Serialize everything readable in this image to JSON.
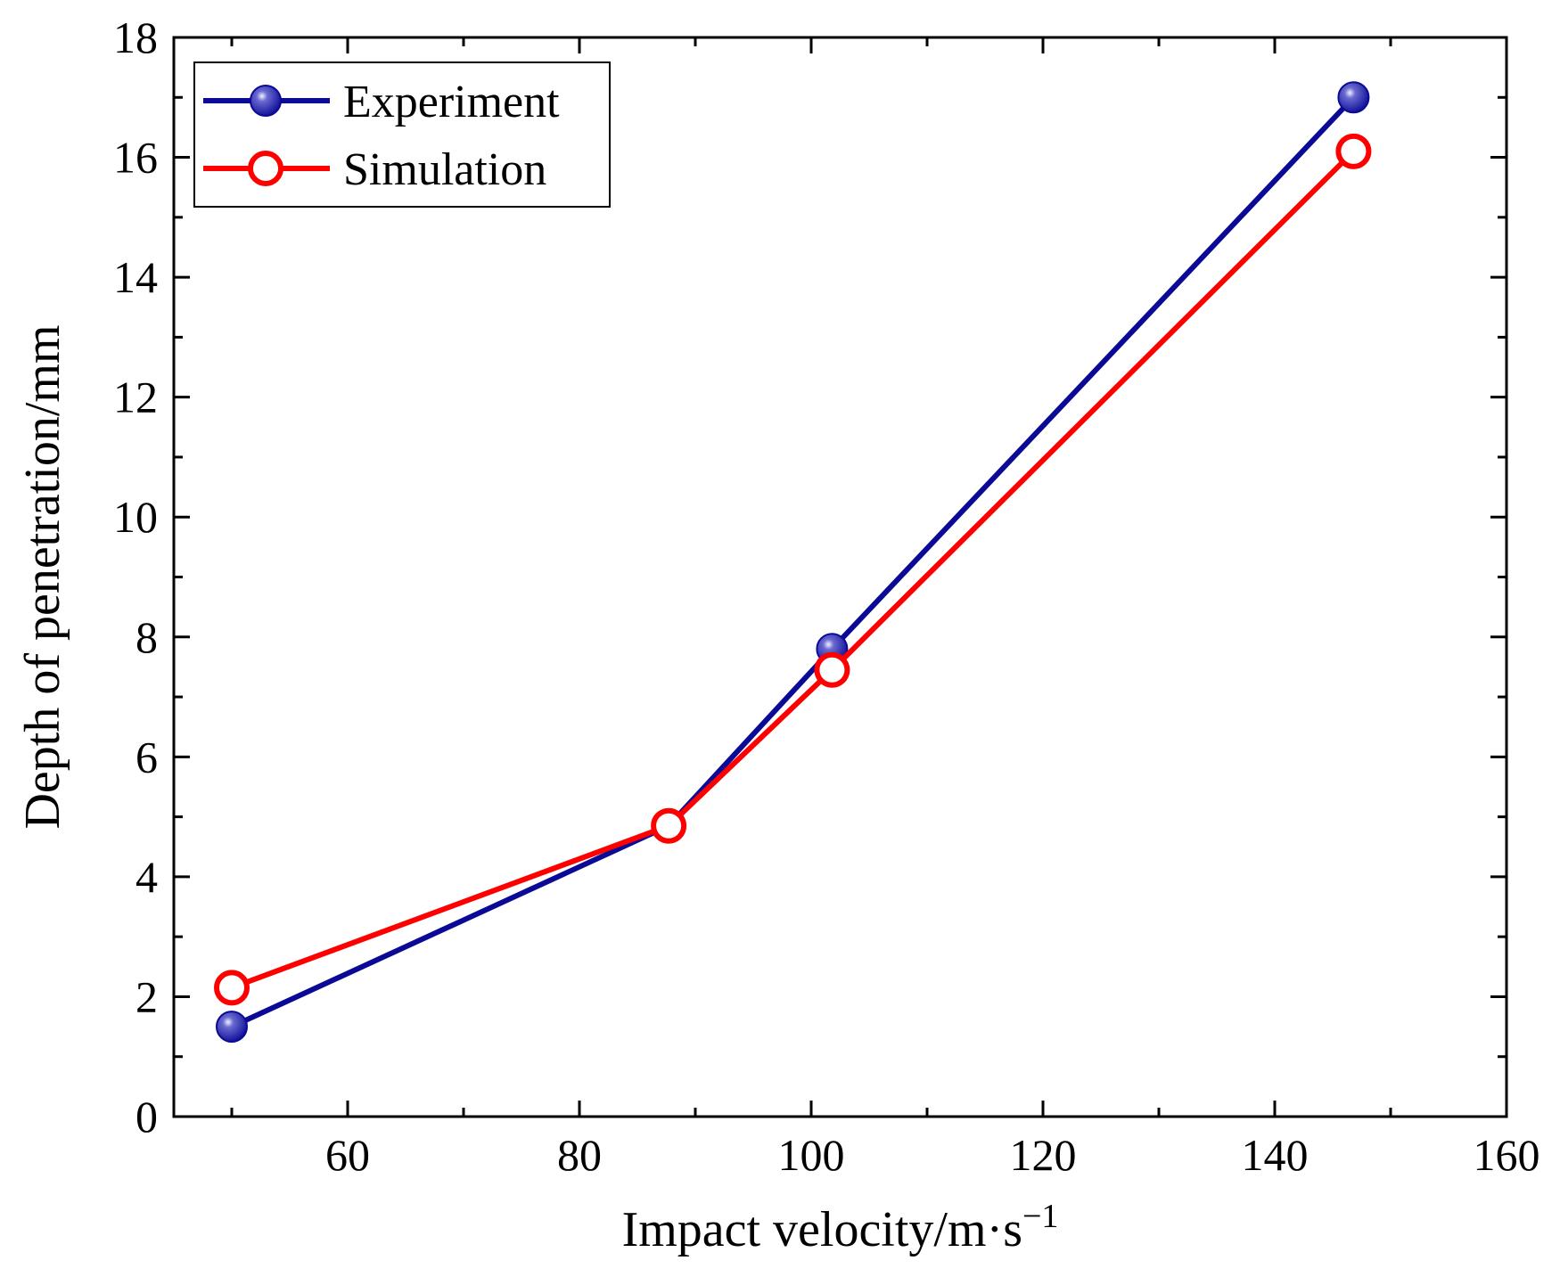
{
  "chart_data": {
    "type": "line",
    "xlabel": "Impact velocity/m·s",
    "xlabel_sup": "−1",
    "ylabel": "Depth of penetration/mm",
    "xlim": [
      45,
      160
    ],
    "ylim": [
      0,
      18
    ],
    "x_ticks": [
      60,
      80,
      100,
      120,
      140,
      160
    ],
    "x_minor_ticks": [
      50,
      70,
      90,
      110,
      130,
      150
    ],
    "y_ticks": [
      0,
      2,
      4,
      6,
      8,
      10,
      12,
      14,
      16,
      18
    ],
    "y_minor_ticks": [
      1,
      3,
      5,
      7,
      9,
      11,
      13,
      15,
      17
    ],
    "grid": false,
    "legend_position": "top-left",
    "series": [
      {
        "name": "Experiment",
        "color": "#0a0a96",
        "marker": "filled-circle",
        "x": [
          50,
          87.7,
          101.8,
          146.8
        ],
        "y": [
          1.5,
          4.85,
          7.8,
          17.0
        ]
      },
      {
        "name": "Simulation",
        "color": "#ff0000",
        "marker": "open-circle",
        "x": [
          50,
          87.7,
          101.8,
          146.8
        ],
        "y": [
          2.15,
          4.85,
          7.45,
          16.1
        ]
      }
    ]
  }
}
